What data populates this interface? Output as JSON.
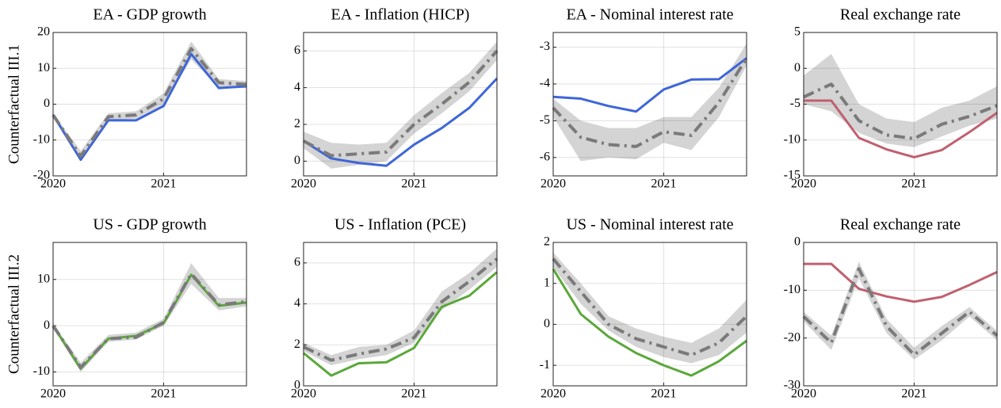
{
  "chart_data": [
    {
      "type": "line",
      "title": "EA - GDP growth",
      "ylabel": "Counterfactual III.1",
      "x": [
        2020,
        2020.25,
        2020.5,
        2020.75,
        2021,
        2021.25,
        2021.5,
        2021.75
      ],
      "xlim": [
        2020,
        2021.75
      ],
      "xticks": [
        2020,
        2021
      ],
      "ylim": [
        -20,
        20
      ],
      "yticks": [
        -20,
        -10,
        0,
        10,
        20
      ],
      "grid": true,
      "band": {
        "color": "#d4d4d4",
        "lower": [
          -3.5,
          -16,
          -4.5,
          -4,
          0,
          12.5,
          4.5,
          4.5
        ],
        "upper": [
          -2.5,
          -13,
          -2.5,
          -2,
          3,
          17.5,
          7,
          6.5
        ]
      },
      "series": [
        {
          "color": "#3e66d8",
          "style": "solid",
          "values": [
            -3,
            -15.5,
            -4.5,
            -4.5,
            -0.5,
            14,
            4.5,
            5
          ]
        },
        {
          "color": "#7a7a7a",
          "style": "dashdot",
          "values": [
            -3,
            -14.5,
            -3.5,
            -3,
            1.5,
            15.5,
            6,
            5.5
          ]
        }
      ]
    },
    {
      "type": "line",
      "title": "EA - Inflation (HICP)",
      "x": [
        2020,
        2020.25,
        2020.5,
        2020.75,
        2021,
        2021.25,
        2021.5,
        2021.75
      ],
      "xlim": [
        2020,
        2021.75
      ],
      "xticks": [
        2020,
        2021
      ],
      "ylim": [
        -0.8,
        7
      ],
      "yticks": [
        0,
        2,
        4,
        6
      ],
      "grid": true,
      "band": {
        "color": "#d4d4d4",
        "lower": [
          0.7,
          -0.4,
          -0.2,
          0,
          1.5,
          2.6,
          3.8,
          5.5
        ],
        "upper": [
          1.6,
          1.0,
          0.9,
          1.0,
          2.5,
          3.7,
          4.8,
          6.5
        ]
      },
      "series": [
        {
          "color": "#3e66d8",
          "style": "solid",
          "values": [
            1.1,
            0.15,
            -0.1,
            -0.25,
            0.9,
            1.8,
            2.9,
            4.5
          ]
        },
        {
          "color": "#7a7a7a",
          "style": "dashdot",
          "values": [
            1.1,
            0.3,
            0.4,
            0.5,
            2.0,
            3.1,
            4.3,
            6.0
          ]
        }
      ]
    },
    {
      "type": "line",
      "title": "EA - Nominal interest rate",
      "x": [
        2020,
        2020.25,
        2020.5,
        2020.75,
        2021,
        2021.25,
        2021.5,
        2021.75
      ],
      "xlim": [
        2020,
        2021.75
      ],
      "xticks": [
        2020,
        2021
      ],
      "ylim": [
        -6.5,
        -2.6
      ],
      "yticks": [
        -6,
        -5,
        -4,
        -3
      ],
      "grid": true,
      "band": {
        "color": "#d4d4d4",
        "lower": [
          -4.9,
          -6.1,
          -6,
          -6.05,
          -5.6,
          -5.8,
          -4.9,
          -3.5
        ],
        "upper": [
          -4.4,
          -5.0,
          -5.2,
          -5.2,
          -4.9,
          -4.9,
          -4.1,
          -2.9
        ]
      },
      "series": [
        {
          "color": "#3e66d8",
          "style": "solid",
          "values": [
            -4.35,
            -4.4,
            -4.6,
            -4.75,
            -4.15,
            -3.88,
            -3.87,
            -3.3
          ]
        },
        {
          "color": "#7a7a7a",
          "style": "dashdot",
          "values": [
            -4.65,
            -5.45,
            -5.65,
            -5.7,
            -5.3,
            -5.4,
            -4.5,
            -3.3
          ]
        }
      ]
    },
    {
      "type": "line",
      "title": "Real exchange rate",
      "x": [
        2020,
        2020.25,
        2020.5,
        2020.75,
        2021,
        2021.25,
        2021.5,
        2021.75
      ],
      "xlim": [
        2020,
        2021.75
      ],
      "xticks": [
        2020,
        2021
      ],
      "ylim": [
        -15,
        5
      ],
      "yticks": [
        -15,
        -10,
        -5,
        0,
        5
      ],
      "grid": true,
      "band": {
        "color": "#d4d4d4",
        "lower": [
          -5,
          -6,
          -9,
          -10.5,
          -11,
          -9.5,
          -8,
          -7
        ],
        "upper": [
          -1,
          2,
          -5,
          -7,
          -7.5,
          -5.5,
          -4.5,
          -2.5
        ]
      },
      "series": [
        {
          "color": "#c0606e",
          "style": "solid",
          "values": [
            -4.5,
            -4.5,
            -9.7,
            -11.3,
            -12.4,
            -11.4,
            -8.9,
            -6.2
          ]
        },
        {
          "color": "#7a7a7a",
          "style": "dashdot",
          "values": [
            -4,
            -2.2,
            -7.3,
            -9.3,
            -9.8,
            -7.8,
            -6.7,
            -5.2
          ]
        }
      ]
    },
    {
      "type": "line",
      "title": "US - GDP growth",
      "ylabel": "Counterfactual III.2",
      "x": [
        2020,
        2020.25,
        2020.5,
        2020.75,
        2021,
        2021.25,
        2021.5,
        2021.75
      ],
      "xlim": [
        2020,
        2021.75
      ],
      "xticks": [
        2020,
        2021
      ],
      "ylim": [
        -13,
        18
      ],
      "yticks": [
        -10,
        0,
        10
      ],
      "grid": true,
      "band": {
        "color": "#d4d4d4",
        "lower": [
          -0.5,
          -10,
          -3.5,
          -3,
          0,
          9,
          3.3,
          4.2
        ],
        "upper": [
          0.5,
          -8,
          -2,
          -1.5,
          1.5,
          13.5,
          6,
          6
        ]
      },
      "series": [
        {
          "color": "#5aa83a",
          "style": "solid",
          "values": [
            0,
            -9.3,
            -2.8,
            -2.2,
            0.5,
            11,
            4.3,
            5
          ]
        },
        {
          "color": "#7a7a7a",
          "style": "dashdot",
          "values": [
            0,
            -9,
            -2.8,
            -2.5,
            0.7,
            11.2,
            4.5,
            5.2
          ]
        }
      ]
    },
    {
      "type": "line",
      "title": "US - Inflation (PCE)",
      "x": [
        2020,
        2020.25,
        2020.5,
        2020.75,
        2021,
        2021.25,
        2021.5,
        2021.75
      ],
      "xlim": [
        2020,
        2021.75
      ],
      "xticks": [
        2020,
        2021
      ],
      "ylim": [
        0,
        7
      ],
      "yticks": [
        0,
        2,
        4,
        6
      ],
      "grid": true,
      "band": {
        "color": "#d4d4d4",
        "lower": [
          1.7,
          1.0,
          1.3,
          1.5,
          2.1,
          3.7,
          4.7,
          5.8
        ],
        "upper": [
          2.1,
          1.5,
          1.9,
          2.0,
          2.7,
          4.6,
          5.5,
          6.7
        ]
      },
      "series": [
        {
          "color": "#5aa83a",
          "style": "solid",
          "values": [
            1.6,
            0.5,
            1.1,
            1.15,
            1.85,
            3.85,
            4.4,
            5.55
          ]
        },
        {
          "color": "#7a7a7a",
          "style": "dashdot",
          "values": [
            1.9,
            1.25,
            1.55,
            1.8,
            2.35,
            4.1,
            5.1,
            6.2
          ]
        }
      ]
    },
    {
      "type": "line",
      "title": "US - Nominal interest rate",
      "x": [
        2020,
        2020.25,
        2020.5,
        2020.75,
        2021,
        2021.25,
        2021.5,
        2021.75
      ],
      "xlim": [
        2020,
        2021.75
      ],
      "xticks": [
        2020,
        2021
      ],
      "ylim": [
        -1.5,
        2
      ],
      "yticks": [
        -1,
        0,
        1,
        2
      ],
      "grid": true,
      "band": {
        "color": "#d4d4d4",
        "lower": [
          1.4,
          0.5,
          -0.15,
          -0.55,
          -0.8,
          -0.95,
          -0.75,
          -0.2
        ],
        "upper": [
          1.75,
          1.0,
          0.2,
          -0.1,
          -0.3,
          -0.45,
          -0.1,
          0.6
        ]
      },
      "series": [
        {
          "color": "#5aa83a",
          "style": "solid",
          "values": [
            1.35,
            0.25,
            -0.3,
            -0.7,
            -1.0,
            -1.25,
            -0.9,
            -0.4
          ]
        },
        {
          "color": "#7a7a7a",
          "style": "dashdot",
          "values": [
            1.6,
            0.8,
            0,
            -0.35,
            -0.55,
            -0.75,
            -0.45,
            0.2
          ]
        }
      ]
    },
    {
      "type": "line",
      "title": "Real exchange rate",
      "x": [
        2020,
        2020.25,
        2020.5,
        2020.75,
        2021,
        2021.25,
        2021.5,
        2021.75
      ],
      "xlim": [
        2020,
        2021.75
      ],
      "xticks": [
        2020,
        2021
      ],
      "ylim": [
        -30,
        0
      ],
      "yticks": [
        -30,
        -20,
        -10,
        0
      ],
      "grid": true,
      "band": {
        "color": "#d4d4d4",
        "lower": [
          -16.5,
          -22.5,
          -7.5,
          -19,
          -24.5,
          -20.5,
          -15.5,
          -20.5
        ],
        "upper": [
          -14.5,
          -19.5,
          -4,
          -16,
          -22,
          -17.5,
          -13.5,
          -18.5
        ]
      },
      "series": [
        {
          "color": "#c0606e",
          "style": "solid",
          "values": [
            -4.5,
            -4.5,
            -9.7,
            -11.3,
            -12.4,
            -11.4,
            -8.9,
            -6.2
          ]
        },
        {
          "color": "#7a7a7a",
          "style": "dashdot",
          "values": [
            -15.5,
            -21,
            -5.5,
            -17.5,
            -23.5,
            -19,
            -14.5,
            -19.5
          ]
        }
      ]
    }
  ]
}
